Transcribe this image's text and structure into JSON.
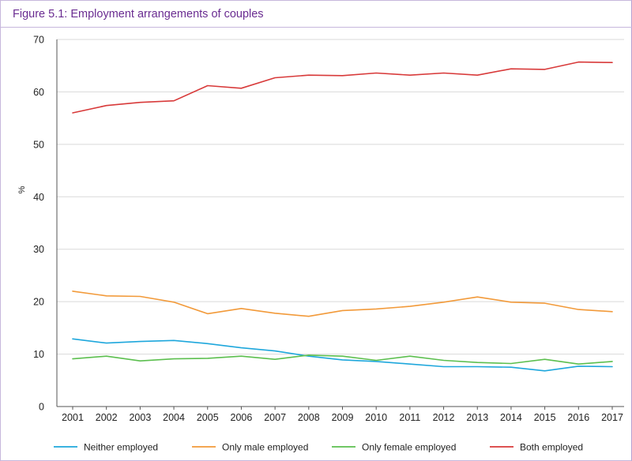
{
  "figure": {
    "title": "Figure 5.1: Employment arrangements of couples"
  },
  "chart_data": {
    "type": "line",
    "title": "Figure 5.1: Employment arrangements of couples",
    "xlabel": "",
    "ylabel": "%",
    "x": [
      "2001",
      "2002",
      "2003",
      "2004",
      "2005",
      "2006",
      "2007",
      "2008",
      "2009",
      "2010",
      "2011",
      "2012",
      "2013",
      "2014",
      "2015",
      "2016",
      "2017"
    ],
    "yticks": [
      "0",
      "10",
      "20",
      "30",
      "40",
      "50",
      "60",
      "70"
    ],
    "ylim": [
      0,
      70
    ],
    "grid": "horizontal",
    "legend_position": "bottom",
    "series": [
      {
        "name": "Neither employed",
        "color": "#1ea7dc",
        "values": [
          12.9,
          12.1,
          12.4,
          12.6,
          12.0,
          11.2,
          10.6,
          9.6,
          8.9,
          8.6,
          8.1,
          7.6,
          7.6,
          7.5,
          6.8,
          7.7,
          7.6
        ]
      },
      {
        "name": "Only male employed",
        "color": "#f29a3a",
        "values": [
          22.0,
          21.1,
          21.0,
          19.9,
          17.7,
          18.7,
          17.8,
          17.2,
          18.3,
          18.6,
          19.1,
          19.9,
          20.9,
          19.9,
          19.7,
          18.5,
          18.1
        ]
      },
      {
        "name": "Only female employed",
        "color": "#5cbf4f",
        "values": [
          9.1,
          9.6,
          8.7,
          9.1,
          9.2,
          9.6,
          9.0,
          9.8,
          9.6,
          8.8,
          9.6,
          8.8,
          8.4,
          8.2,
          9.0,
          8.1,
          8.6
        ]
      },
      {
        "name": "Both employed",
        "color": "#d83a3a",
        "values": [
          56.0,
          57.4,
          58.0,
          58.3,
          61.2,
          60.7,
          62.7,
          63.2,
          63.1,
          63.6,
          63.2,
          63.6,
          63.2,
          64.4,
          64.3,
          65.7,
          65.6
        ]
      }
    ]
  }
}
